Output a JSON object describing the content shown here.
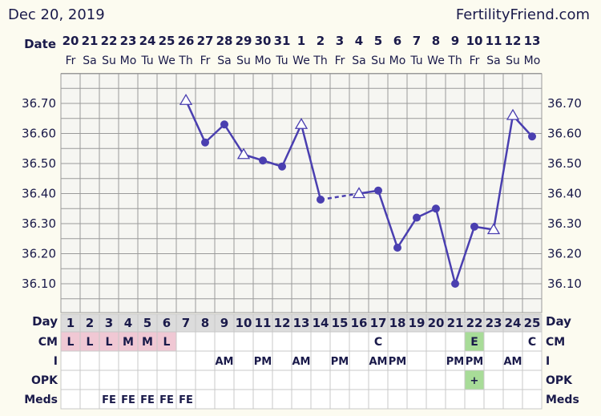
{
  "header": {
    "date": "Dec 20, 2019",
    "site": "FertilityFriend.com"
  },
  "labels": {
    "date": "Date",
    "day": "Day",
    "cm": "CM",
    "i": "I",
    "opk": "OPK",
    "meds": "Meds"
  },
  "chart_data": {
    "type": "line",
    "title": "",
    "dates": [
      "20",
      "21",
      "22",
      "23",
      "24",
      "25",
      "26",
      "27",
      "28",
      "29",
      "30",
      "31",
      "1",
      "2",
      "3",
      "4",
      "5",
      "6",
      "7",
      "8",
      "9",
      "10",
      "11",
      "12",
      "13"
    ],
    "weekdays": [
      "Fr",
      "Sa",
      "Su",
      "Mo",
      "Tu",
      "We",
      "Th",
      "Fr",
      "Sa",
      "Su",
      "Mo",
      "Tu",
      "We",
      "Th",
      "Fr",
      "Sa",
      "Su",
      "Mo",
      "Tu",
      "We",
      "Th",
      "Fr",
      "Sa",
      "Su",
      "Mo"
    ],
    "cycle_days": [
      "1",
      "2",
      "3",
      "4",
      "5",
      "6",
      "7",
      "8",
      "9",
      "10",
      "11",
      "12",
      "13",
      "14",
      "15",
      "16",
      "17",
      "18",
      "19",
      "20",
      "21",
      "22",
      "23",
      "24",
      "25"
    ],
    "ylim": [
      36.0,
      36.8
    ],
    "y_ticks": [
      "36.10",
      "36.20",
      "36.30",
      "36.40",
      "36.50",
      "36.60",
      "36.70"
    ],
    "temperatures": [
      null,
      null,
      null,
      null,
      null,
      null,
      36.71,
      36.57,
      36.63,
      36.53,
      36.51,
      36.49,
      36.63,
      36.38,
      null,
      36.4,
      36.41,
      36.22,
      36.32,
      36.35,
      36.1,
      36.29,
      36.28,
      36.66,
      36.59
    ],
    "open_markers": [
      6,
      9,
      12,
      15,
      22,
      23
    ],
    "dashed_segments": [
      [
        13,
        15
      ]
    ],
    "cm": [
      "L",
      "L",
      "L",
      "M",
      "M",
      "L",
      "",
      "",
      "",
      "",
      "",
      "",
      "",
      "",
      "",
      "",
      "C",
      "",
      "",
      "",
      "",
      "E",
      "",
      "",
      "C"
    ],
    "intercourse": [
      "",
      "",
      "",
      "",
      "",
      "",
      "",
      "",
      "AM",
      "",
      "PM",
      "",
      "AM",
      "",
      "PM",
      "",
      "AM",
      "PM",
      "",
      "",
      "PM",
      "PM",
      "",
      "AM",
      ""
    ],
    "opk": [
      "",
      "",
      "",
      "",
      "",
      "",
      "",
      "",
      "",
      "",
      "",
      "",
      "",
      "",
      "",
      "",
      "",
      "",
      "",
      "",
      "",
      "+",
      "",
      "",
      ""
    ],
    "meds": [
      "",
      "",
      "FE",
      "FE",
      "FE",
      "FE",
      "FE",
      "",
      "",
      "",
      "",
      "",
      "",
      "",
      "",
      "",
      "",
      "",
      "",
      "",
      "",
      "",
      "",
      "",
      ""
    ],
    "colors": {
      "line": "#4a3fb0",
      "period": "#f0c8d4",
      "fertile_green": "#a8dc98",
      "text_navy": "#1a1a4a",
      "grid": "#9a9a9a",
      "background": "#fcfbf0",
      "plot_bg": "#f6f6f2"
    }
  }
}
